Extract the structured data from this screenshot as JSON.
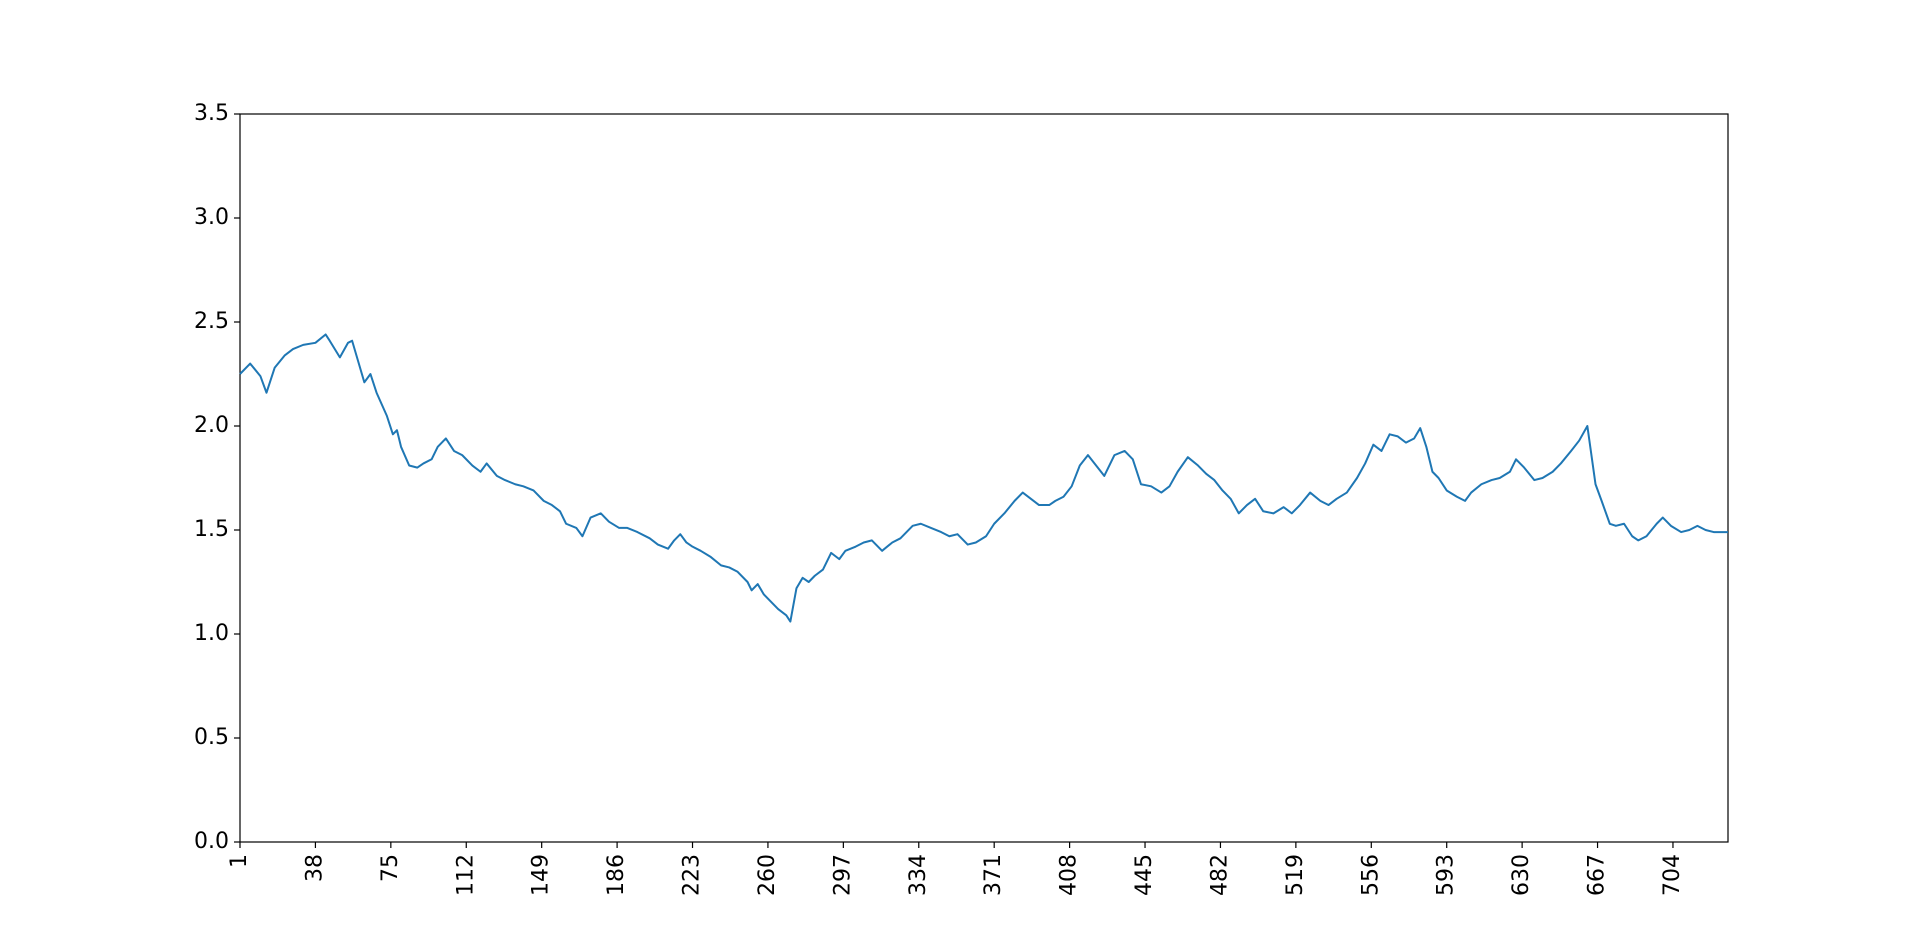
{
  "chart_data": {
    "type": "line",
    "x": [
      1,
      6,
      11,
      14,
      18,
      23,
      27,
      32,
      38,
      43,
      45,
      50,
      54,
      56,
      59,
      62,
      65,
      68,
      73,
      76,
      78,
      80,
      84,
      88,
      91,
      95,
      98,
      102,
      106,
      110,
      115,
      119,
      122,
      127,
      131,
      136,
      140,
      145,
      150,
      154,
      158,
      161,
      166,
      169,
      173,
      178,
      182,
      187,
      191,
      196,
      202,
      206,
      211,
      214,
      217,
      220,
      223,
      227,
      232,
      237,
      241,
      245,
      250,
      252,
      255,
      258,
      262,
      265,
      269,
      271,
      274,
      277,
      280,
      283,
      287,
      291,
      295,
      298,
      303,
      307,
      311,
      316,
      321,
      325,
      331,
      335,
      340,
      345,
      349,
      353,
      358,
      362,
      367,
      371,
      376,
      381,
      385,
      389,
      393,
      398,
      401,
      405,
      409,
      413,
      417,
      421,
      425,
      430,
      435,
      439,
      443,
      448,
      453,
      457,
      461,
      466,
      471,
      475,
      479,
      483,
      487,
      491,
      495,
      499,
      503,
      508,
      513,
      517,
      521,
      526,
      531,
      535,
      539,
      544,
      549,
      553,
      557,
      561,
      565,
      569,
      573,
      577,
      580,
      583,
      586,
      589,
      593,
      598,
      602,
      605,
      610,
      615,
      619,
      624,
      627,
      631,
      636,
      640,
      645,
      649,
      654,
      658,
      662,
      666,
      669,
      673,
      676,
      680,
      684,
      687,
      691,
      696,
      699,
      703,
      708,
      712,
      716,
      720,
      724,
      731
    ],
    "series": [
      {
        "color": "#1f77b4",
        "values": [
          2.25,
          2.3,
          2.24,
          2.16,
          2.28,
          2.34,
          2.37,
          2.39,
          2.4,
          2.44,
          2.41,
          2.33,
          2.4,
          2.41,
          2.31,
          2.21,
          2.25,
          2.16,
          2.05,
          1.96,
          1.98,
          1.9,
          1.81,
          1.8,
          1.82,
          1.84,
          1.9,
          1.94,
          1.88,
          1.86,
          1.81,
          1.78,
          1.82,
          1.76,
          1.74,
          1.72,
          1.71,
          1.69,
          1.64,
          1.62,
          1.59,
          1.53,
          1.51,
          1.47,
          1.56,
          1.58,
          1.54,
          1.51,
          1.51,
          1.49,
          1.46,
          1.43,
          1.41,
          1.45,
          1.48,
          1.44,
          1.42,
          1.4,
          1.37,
          1.33,
          1.32,
          1.3,
          1.25,
          1.21,
          1.24,
          1.19,
          1.15,
          1.12,
          1.09,
          1.06,
          1.22,
          1.27,
          1.25,
          1.28,
          1.31,
          1.39,
          1.36,
          1.4,
          1.42,
          1.44,
          1.45,
          1.4,
          1.44,
          1.46,
          1.52,
          1.53,
          1.51,
          1.49,
          1.47,
          1.48,
          1.43,
          1.44,
          1.47,
          1.53,
          1.58,
          1.64,
          1.68,
          1.65,
          1.62,
          1.62,
          1.64,
          1.66,
          1.71,
          1.81,
          1.86,
          1.81,
          1.76,
          1.86,
          1.88,
          1.84,
          1.72,
          1.71,
          1.68,
          1.71,
          1.78,
          1.85,
          1.81,
          1.77,
          1.74,
          1.69,
          1.65,
          1.58,
          1.62,
          1.65,
          1.59,
          1.58,
          1.61,
          1.58,
          1.62,
          1.68,
          1.64,
          1.62,
          1.65,
          1.68,
          1.75,
          1.82,
          1.91,
          1.88,
          1.96,
          1.95,
          1.92,
          1.94,
          1.99,
          1.9,
          1.78,
          1.75,
          1.69,
          1.66,
          1.64,
          1.68,
          1.72,
          1.74,
          1.75,
          1.78,
          1.84,
          1.8,
          1.74,
          1.75,
          1.78,
          1.82,
          1.88,
          1.93,
          2.0,
          1.72,
          1.64,
          1.53,
          1.52,
          1.53,
          1.47,
          1.45,
          1.47,
          1.53,
          1.56,
          1.52,
          1.49,
          1.5,
          1.52,
          1.5,
          1.49,
          1.49
        ]
      }
    ],
    "xlim": [
      1,
      731
    ],
    "xticks": [
      1,
      38,
      75,
      112,
      149,
      186,
      223,
      260,
      297,
      334,
      371,
      408,
      445,
      482,
      519,
      556,
      593,
      630,
      667,
      704
    ],
    "ylim": [
      0,
      3.5
    ],
    "yticks": [
      {
        "value": 0,
        "label": "0.0"
      },
      {
        "value": 0.5,
        "label": "0.5"
      },
      {
        "value": 1,
        "label": "1.0"
      },
      {
        "value": 1.5,
        "label": "1.5"
      },
      {
        "value": 2,
        "label": "2.0"
      },
      {
        "value": 2.5,
        "label": "2.5"
      },
      {
        "value": 3,
        "label": "3.0"
      },
      {
        "value": 3.5,
        "label": "3.5"
      }
    ]
  }
}
